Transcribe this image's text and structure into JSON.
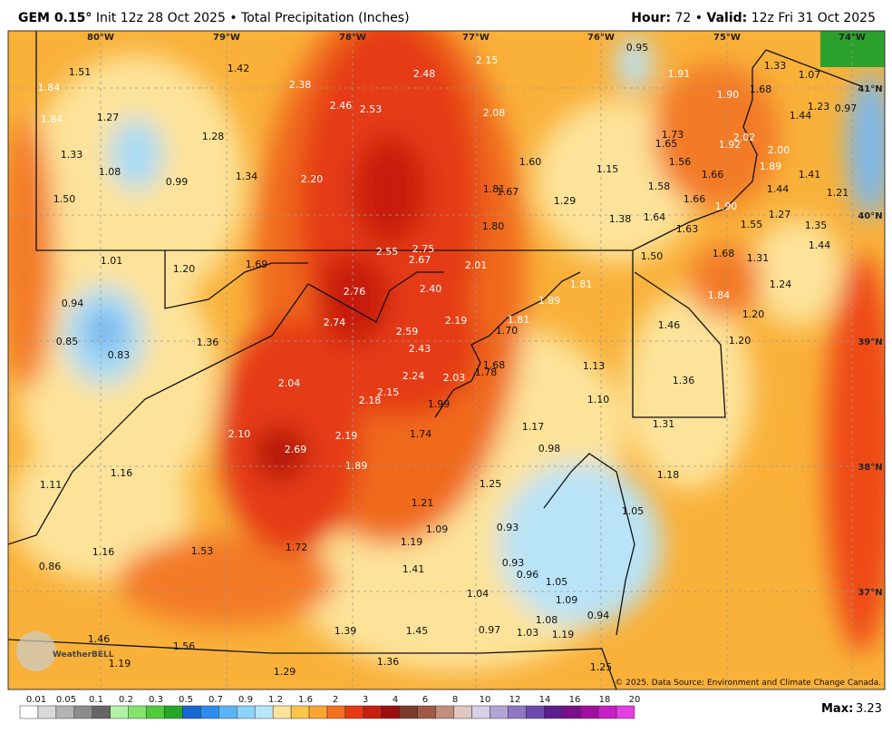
{
  "header": {
    "model": "GEM 0.15°",
    "info": "Init 12z 28 Oct 2025",
    "separator": "•",
    "product": "Total Precipitation (Inches)",
    "hour_label": "Hour:",
    "hour": "72",
    "valid_label": "Valid:",
    "valid": "12z Fri 31 Oct 2025"
  },
  "map": {
    "longitude_labels": [
      "80°W",
      "79°W",
      "78°W",
      "77°W",
      "76°W",
      "75°W",
      "74°W"
    ],
    "latitude_labels": [
      "41°N",
      "40°N",
      "39°N",
      "38°N",
      "37°N"
    ],
    "values": [
      "1.51",
      "1.42",
      "2.48",
      "2.15",
      "0.95",
      "1.33",
      "1.07",
      "1.84",
      "2.38",
      "1.91",
      "1.90",
      "1.68",
      "1.23",
      "0.97",
      "1.84",
      "1.27",
      "2.46",
      "2.53",
      "2.08",
      "1.44",
      "1.28",
      "1.73",
      "2.02",
      "1.65",
      "1.92",
      "2.00",
      "1.33",
      "1.60",
      "1.56",
      "1.89",
      "1.08",
      "1.34",
      "2.20",
      "1.15",
      "1.66",
      "1.41",
      "0.99",
      "1.81",
      "1.67",
      "1.58",
      "1.44",
      "1.21",
      "1.50",
      "1.29",
      "1.66",
      "1.90",
      "1.27",
      "1.35",
      "1.38",
      "1.64",
      "1.55",
      "1.80",
      "1.63",
      "2.55",
      "2.75",
      "1.44",
      "1.50",
      "1.68",
      "1.31",
      "1.01",
      "1.69",
      "2.67",
      "2.01",
      "1.20",
      "2.76",
      "2.40",
      "1.89",
      "1.24",
      "1.81",
      "0.94",
      "2.74",
      "2.19",
      "1.81",
      "1.20",
      "1.84",
      "1.46",
      "0.85",
      "1.36",
      "2.59",
      "1.70",
      "1.20",
      "0.83",
      "2.43",
      "1.68",
      "1.78",
      "1.13",
      "2.04",
      "2.24",
      "2.03",
      "1.36",
      "2.15",
      "2.18",
      "1.99",
      "1.10",
      "1.31",
      "1.17",
      "1.74",
      "2.10",
      "2.19",
      "1.16",
      "2.69",
      "0.98",
      "1.89",
      "1.11",
      "1.18",
      "1.25",
      "1.21",
      "1.09",
      "0.93",
      "1.05",
      "1.19",
      "1.16",
      "1.53",
      "1.72",
      "0.86",
      "0.93",
      "0.96",
      "1.41",
      "1.05",
      "1.04",
      "1.09",
      "0.94",
      "1.08",
      "1.39",
      "1.45",
      "0.97",
      "1.03",
      "1.19",
      "1.46",
      "1.56",
      "1.19",
      "1.36",
      "1.25",
      "1.29"
    ],
    "credit": "© 2025. Data Source: Environment and Climate Change Canada.",
    "logo": "WeatherBELL"
  },
  "legend": {
    "ticks": [
      "0.01",
      "0.05",
      "0.1",
      "0.2",
      "0.3",
      "0.5",
      "0.7",
      "0.9",
      "1.2",
      "1.6",
      "2",
      "3",
      "4",
      "6",
      "8",
      "10",
      "12",
      "14",
      "16",
      "18",
      "20"
    ],
    "max_label": "Max:",
    "max": "3.23"
  }
}
